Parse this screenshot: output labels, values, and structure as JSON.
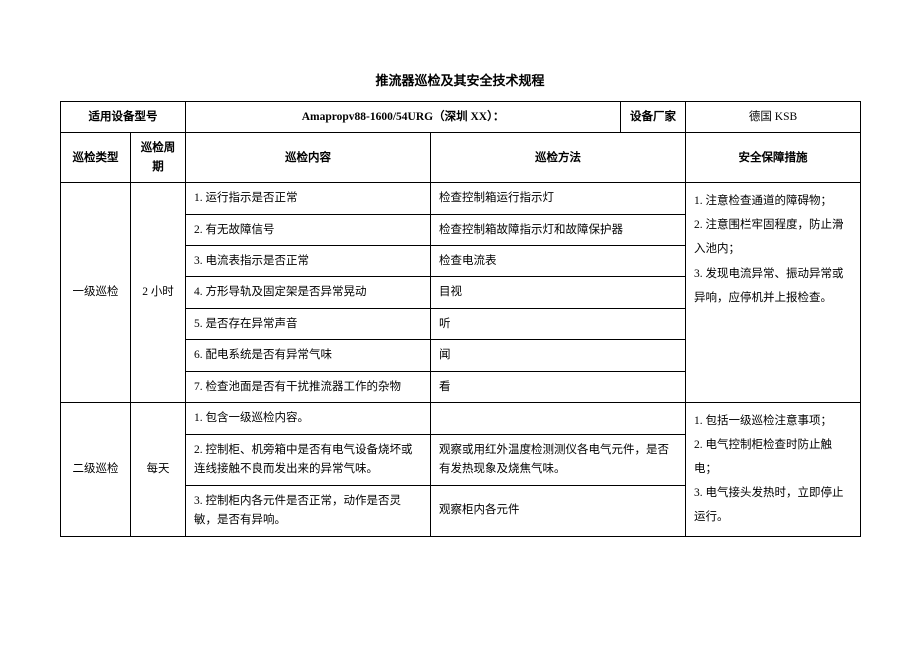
{
  "title": "推流器巡检及其安全技术规程",
  "headerRow": {
    "modelLabel": "适用设备型号",
    "modelValue": "Amapropv88-1600/54URG（深圳 XX）：",
    "vendorLabel": "设备厂家",
    "vendorValue": "德国 KSB"
  },
  "columnHeaders": {
    "type": "巡检类型",
    "period": "巡检周期",
    "content": "巡检内容",
    "method": "巡检方法",
    "safety": "安全保障措施"
  },
  "level1": {
    "type": "一级巡检",
    "period": "2 小时",
    "rows": [
      {
        "content": "1. 运行指示是否正常",
        "method": "检查控制箱运行指示灯"
      },
      {
        "content": "2. 有无故障信号",
        "method": "检查控制箱故障指示灯和故障保护器"
      },
      {
        "content": "3. 电流表指示是否正常",
        "method": "检查电流表"
      },
      {
        "content": "4. 方形导轨及固定架是否异常晃动",
        "method": "目视"
      },
      {
        "content": "5. 是否存在异常声音",
        "method": "听"
      },
      {
        "content": "6. 配电系统是否有异常气味",
        "method": "闻"
      },
      {
        "content": "7. 检查池面是否有干扰推流器工作的杂物",
        "method": "看"
      }
    ],
    "safety": "1. 注意检查通道的障碍物；\n2. 注意围栏牢固程度，防止滑入池内；\n3. 发现电流异常、振动异常或异响，应停机并上报检查。"
  },
  "level2": {
    "type": "二级巡检",
    "period": "每天",
    "rows": [
      {
        "content": "1. 包含一级巡检内容。",
        "method": ""
      },
      {
        "content": "2. 控制柜、机旁箱中是否有电气设备烧坏或连线接触不良而发出来的异常气味。",
        "method": "观察或用红外温度检测测仪各电气元件，是否有发热现象及烧焦气味。"
      },
      {
        "content": "3. 控制柜内各元件是否正常，动作是否灵敏，是否有异响。",
        "method": "观察柜内各元件"
      }
    ],
    "safety": "1. 包括一级巡检注意事项；\n2. 电气控制柜检查时防止触电；\n3. 电气接头发热时，立即停止运行。"
  }
}
